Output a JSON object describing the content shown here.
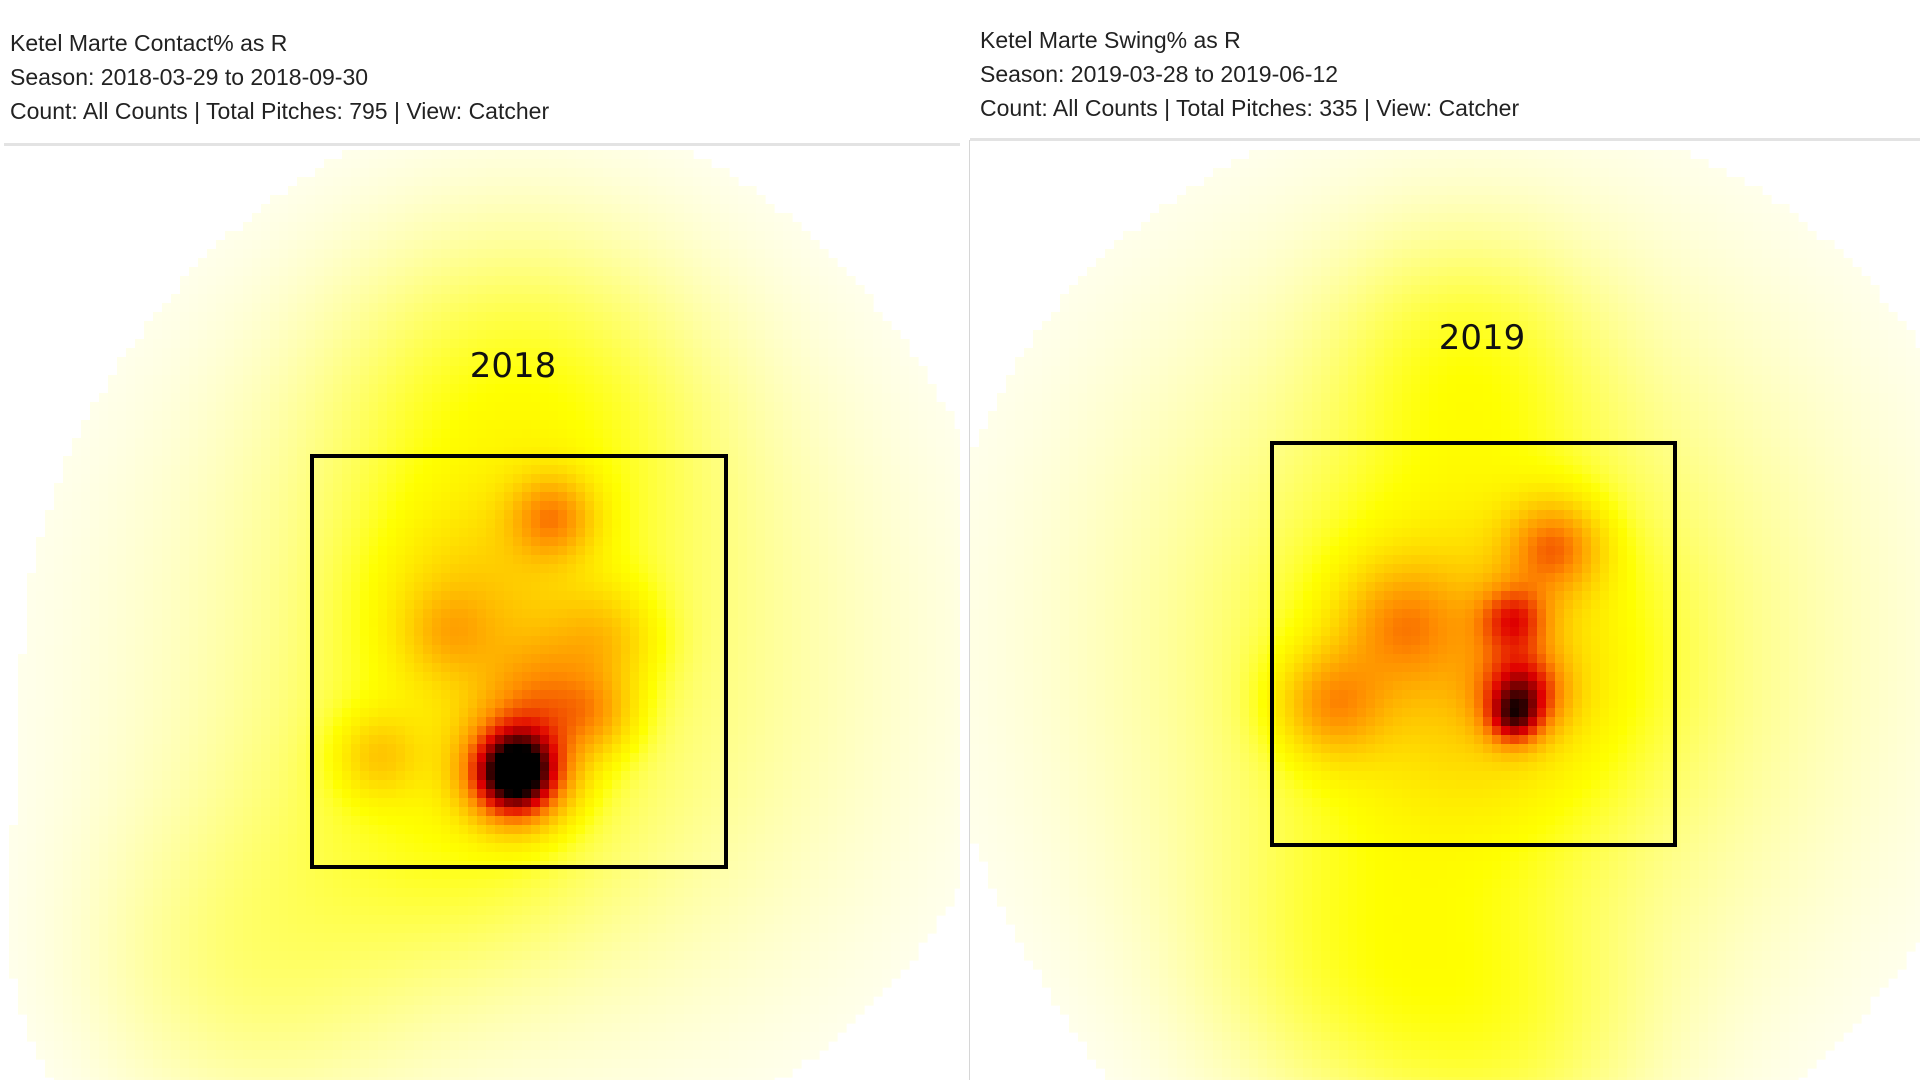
{
  "colors": {
    "low": "#ffff00",
    "mid": "#ff8c00",
    "high": "#e00000",
    "peak": "#000000",
    "zone_border": "#000000"
  },
  "chart_data": [
    {
      "type": "heatmap",
      "header": {
        "line1": "Ketel Marte Contact% as R",
        "line2": "Season: 2018-03-29 to 2018-09-30",
        "line3": "Count: All Counts | Total Pitches: 795 | View: Catcher"
      },
      "year_label": "2018",
      "strike_zone": true,
      "hotspots": [
        {
          "x": 0.5,
          "y": 0.5,
          "value": 0.1,
          "spread": 0.58
        },
        {
          "x": 0.5,
          "y": 1.1,
          "value": 0.1,
          "spread": 0.3
        },
        {
          "x": 0.35,
          "y": 0.15,
          "value": 0.07,
          "spread": 0.25
        },
        {
          "x": -0.15,
          "y": -0.25,
          "value": 0.06,
          "spread": 0.28
        },
        {
          "x": 0.4,
          "y": 0.62,
          "value": 0.16,
          "spread": 0.17
        },
        {
          "x": 0.58,
          "y": 0.85,
          "value": 0.3,
          "spread": 0.07
        },
        {
          "x": 0.7,
          "y": 0.55,
          "value": 0.18,
          "spread": 0.09
        },
        {
          "x": 0.33,
          "y": 0.57,
          "value": 0.12,
          "spread": 0.07
        },
        {
          "x": 0.68,
          "y": 0.37,
          "value": 0.22,
          "spread": 0.07
        },
        {
          "x": 0.55,
          "y": 0.42,
          "value": 0.2,
          "spread": 0.09
        },
        {
          "x": 0.5,
          "y": 0.25,
          "value": 0.45,
          "spread": 0.09
        },
        {
          "x": 0.16,
          "y": 0.27,
          "value": 0.16,
          "spread": 0.07
        },
        {
          "x": 0.49,
          "y": 0.22,
          "value": 0.62,
          "spread": 0.07
        }
      ]
    },
    {
      "type": "heatmap",
      "header": {
        "line1": "Ketel Marte Swing% as R",
        "line2": "Season: 2019-03-28 to 2019-06-12",
        "line3": "Count: All Counts | Total Pitches: 335 | View: Catcher"
      },
      "year_label": "2019",
      "strike_zone": true,
      "hotspots": [
        {
          "x": 0.5,
          "y": 0.5,
          "value": 0.12,
          "spread": 0.62
        },
        {
          "x": 0.48,
          "y": 1.2,
          "value": 0.08,
          "spread": 0.22
        },
        {
          "x": 0.25,
          "y": -0.3,
          "value": 0.08,
          "spread": 0.28
        },
        {
          "x": 0.6,
          "y": -0.5,
          "value": 0.06,
          "spread": 0.25
        },
        {
          "x": 0.5,
          "y": 0.45,
          "value": 0.2,
          "spread": 0.25
        },
        {
          "x": 0.15,
          "y": 0.35,
          "value": 0.28,
          "spread": 0.09
        },
        {
          "x": 0.32,
          "y": 0.55,
          "value": 0.22,
          "spread": 0.1
        },
        {
          "x": 0.7,
          "y": 0.74,
          "value": 0.34,
          "spread": 0.08
        },
        {
          "x": 0.62,
          "y": 0.38,
          "value": 0.5,
          "spread": 0.07
        },
        {
          "x": 0.6,
          "y": 0.56,
          "value": 0.38,
          "spread": 0.06
        },
        {
          "x": 0.6,
          "y": 0.31,
          "value": 0.35,
          "spread": 0.045
        }
      ]
    }
  ]
}
